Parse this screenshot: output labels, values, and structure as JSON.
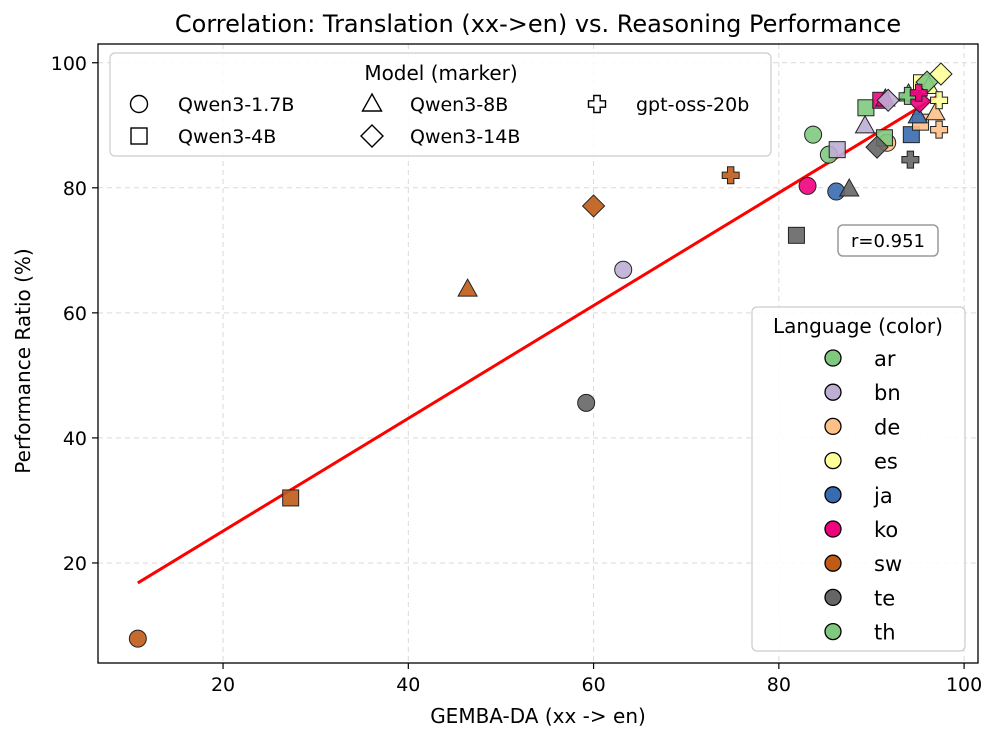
{
  "chart_data": {
    "type": "scatter",
    "title": "Correlation: Translation (xx->en) vs. Reasoning Performance",
    "xlabel": "GEMBA-DA (xx -> en)",
    "ylabel": "Performance Ratio (%)",
    "xlim": [
      6.5,
      101.5
    ],
    "ylim": [
      4,
      103
    ],
    "xticks": [
      20,
      40,
      60,
      80,
      100
    ],
    "yticks": [
      20,
      40,
      60,
      80,
      100
    ],
    "grid": true,
    "correlation_label": "r=0.951",
    "fit_line": {
      "x": [
        10.8,
        97.3
      ],
      "y": [
        16.8,
        94.8
      ],
      "color": "#ff0000"
    },
    "model_legend": {
      "title": "Model (marker)",
      "placement": "top-left",
      "entries": [
        {
          "label": "Qwen3-1.7B",
          "marker": "circle"
        },
        {
          "label": "Qwen3-4B",
          "marker": "square"
        },
        {
          "label": "Qwen3-8B",
          "marker": "triangle"
        },
        {
          "label": "Qwen3-14B",
          "marker": "diamond"
        },
        {
          "label": "gpt-oss-20b",
          "marker": "plus"
        }
      ]
    },
    "language_legend": {
      "title": "Language (color)",
      "placement": "center-right",
      "entries": [
        {
          "label": "ar",
          "color": "#7fc97f"
        },
        {
          "label": "bn",
          "color": "#beaed4"
        },
        {
          "label": "de",
          "color": "#fdc086"
        },
        {
          "label": "es",
          "color": "#ffff99"
        },
        {
          "label": "ja",
          "color": "#386cb0"
        },
        {
          "label": "ko",
          "color": "#f0027f"
        },
        {
          "label": "sw",
          "color": "#bf5b17"
        },
        {
          "label": "te",
          "color": "#666666"
        },
        {
          "label": "th",
          "color": "#7fc97f"
        }
      ]
    },
    "points": [
      {
        "model": "Qwen3-1.7B",
        "lang": "sw",
        "x": 10.8,
        "y": 7.9
      },
      {
        "model": "Qwen3-1.7B",
        "lang": "te",
        "x": 59.2,
        "y": 45.6
      },
      {
        "model": "Qwen3-1.7B",
        "lang": "bn",
        "x": 63.2,
        "y": 66.9
      },
      {
        "model": "Qwen3-1.7B",
        "lang": "ko",
        "x": 83.1,
        "y": 80.3
      },
      {
        "model": "Qwen3-1.7B",
        "lang": "ja",
        "x": 86.2,
        "y": 79.4
      },
      {
        "model": "Qwen3-1.7B",
        "lang": "ar",
        "x": 83.7,
        "y": 88.5
      },
      {
        "model": "Qwen3-1.7B",
        "lang": "th",
        "x": 85.4,
        "y": 85.3
      },
      {
        "model": "Qwen3-1.7B",
        "lang": "de",
        "x": 91.7,
        "y": 87.2
      },
      {
        "model": "Qwen3-4B",
        "lang": "sw",
        "x": 27.3,
        "y": 30.4
      },
      {
        "model": "Qwen3-4B",
        "lang": "te",
        "x": 81.9,
        "y": 72.4
      },
      {
        "model": "Qwen3-4B",
        "lang": "bn",
        "x": 86.3,
        "y": 86.1
      },
      {
        "model": "Qwen3-4B",
        "lang": "th",
        "x": 89.4,
        "y": 92.8
      },
      {
        "model": "Qwen3-4B",
        "lang": "ar",
        "x": 91.4,
        "y": 88.0
      },
      {
        "model": "Qwen3-4B",
        "lang": "ja",
        "x": 94.3,
        "y": 88.5
      },
      {
        "model": "Qwen3-4B",
        "lang": "de",
        "x": 95.3,
        "y": 90.5
      },
      {
        "model": "Qwen3-4B",
        "lang": "ko",
        "x": 91.0,
        "y": 94.0
      },
      {
        "model": "Qwen3-4B",
        "lang": "es",
        "x": 95.4,
        "y": 96.8
      },
      {
        "model": "Qwen3-8B",
        "lang": "sw",
        "x": 46.4,
        "y": 63.8
      },
      {
        "model": "Qwen3-8B",
        "lang": "te",
        "x": 87.6,
        "y": 79.8
      },
      {
        "model": "Qwen3-8B",
        "lang": "bn",
        "x": 89.3,
        "y": 89.9
      },
      {
        "model": "Qwen3-8B",
        "lang": "ko",
        "x": 91.5,
        "y": 94.2
      },
      {
        "model": "Qwen3-8B",
        "lang": "ar",
        "x": 94.0,
        "y": 95.0
      },
      {
        "model": "Qwen3-8B",
        "lang": "ja",
        "x": 95.0,
        "y": 91.5
      },
      {
        "model": "Qwen3-8B",
        "lang": "de",
        "x": 96.9,
        "y": 92.0
      },
      {
        "model": "Qwen3-8B",
        "lang": "es",
        "x": 96.2,
        "y": 96.2
      },
      {
        "model": "Qwen3-14B",
        "lang": "sw",
        "x": 60.0,
        "y": 77.1
      },
      {
        "model": "Qwen3-14B",
        "lang": "te",
        "x": 90.6,
        "y": 86.5
      },
      {
        "model": "Qwen3-14B",
        "lang": "bn",
        "x": 91.8,
        "y": 94.0
      },
      {
        "model": "Qwen3-14B",
        "lang": "ko",
        "x": 95.2,
        "y": 93.8
      },
      {
        "model": "Qwen3-14B",
        "lang": "ar",
        "x": 96.0,
        "y": 96.9
      },
      {
        "model": "Qwen3-14B",
        "lang": "es",
        "x": 97.5,
        "y": 98.2
      },
      {
        "model": "gpt-oss-20b",
        "lang": "sw",
        "x": 74.8,
        "y": 82.0
      },
      {
        "model": "gpt-oss-20b",
        "lang": "te",
        "x": 94.2,
        "y": 84.5
      },
      {
        "model": "gpt-oss-20b",
        "lang": "th",
        "x": 93.9,
        "y": 94.7
      },
      {
        "model": "gpt-oss-20b",
        "lang": "ko",
        "x": 95.1,
        "y": 95.2
      },
      {
        "model": "gpt-oss-20b",
        "lang": "de",
        "x": 97.3,
        "y": 89.3
      },
      {
        "model": "gpt-oss-20b",
        "lang": "es",
        "x": 97.3,
        "y": 94.0
      }
    ]
  }
}
